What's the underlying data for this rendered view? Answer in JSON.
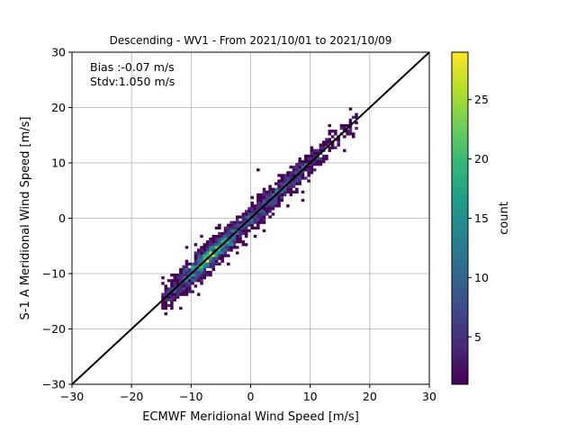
{
  "chart_data": {
    "type": "heatmap",
    "title": "Descending - WV1 - From 2021/10/01 to 2021/10/09",
    "xlabel": "ECMWF Meridional Wind Speed [m/s]",
    "ylabel": "S-1 A Meridional Wind Speed [m/s]",
    "xlim": [
      -30,
      30
    ],
    "ylim": [
      -30,
      30
    ],
    "xticks": [
      "−30",
      "−20",
      "−10",
      "0",
      "10",
      "20",
      "30"
    ],
    "yticks": [
      "−30",
      "−20",
      "−10",
      "0",
      "10",
      "20",
      "30"
    ],
    "grid": true,
    "annotations": [
      "Bias :-0.07 m/s",
      "Stdv:1.050 m/s"
    ],
    "reference_line": {
      "x": [
        -30,
        30
      ],
      "y": [
        -30,
        30
      ],
      "color": "#000000"
    },
    "colorbar": {
      "label": "count",
      "range": [
        1,
        29
      ],
      "ticks": [
        "5",
        "10",
        "15",
        "20",
        "25"
      ],
      "tick_values": [
        5,
        10,
        15,
        20,
        25
      ],
      "colormap": "viridis"
    },
    "density": {
      "x_range": [
        -15,
        18
      ],
      "diagonal_spread": 1.05,
      "peak_count": 29,
      "peak_near": [
        -7,
        -7
      ]
    }
  },
  "colors": {
    "viridis": [
      "#440154",
      "#482878",
      "#3e4989",
      "#31688e",
      "#26828e",
      "#1f9e89",
      "#35b779",
      "#6ece58",
      "#b5de2b",
      "#fde725"
    ],
    "grid": "#b0b0b0"
  }
}
